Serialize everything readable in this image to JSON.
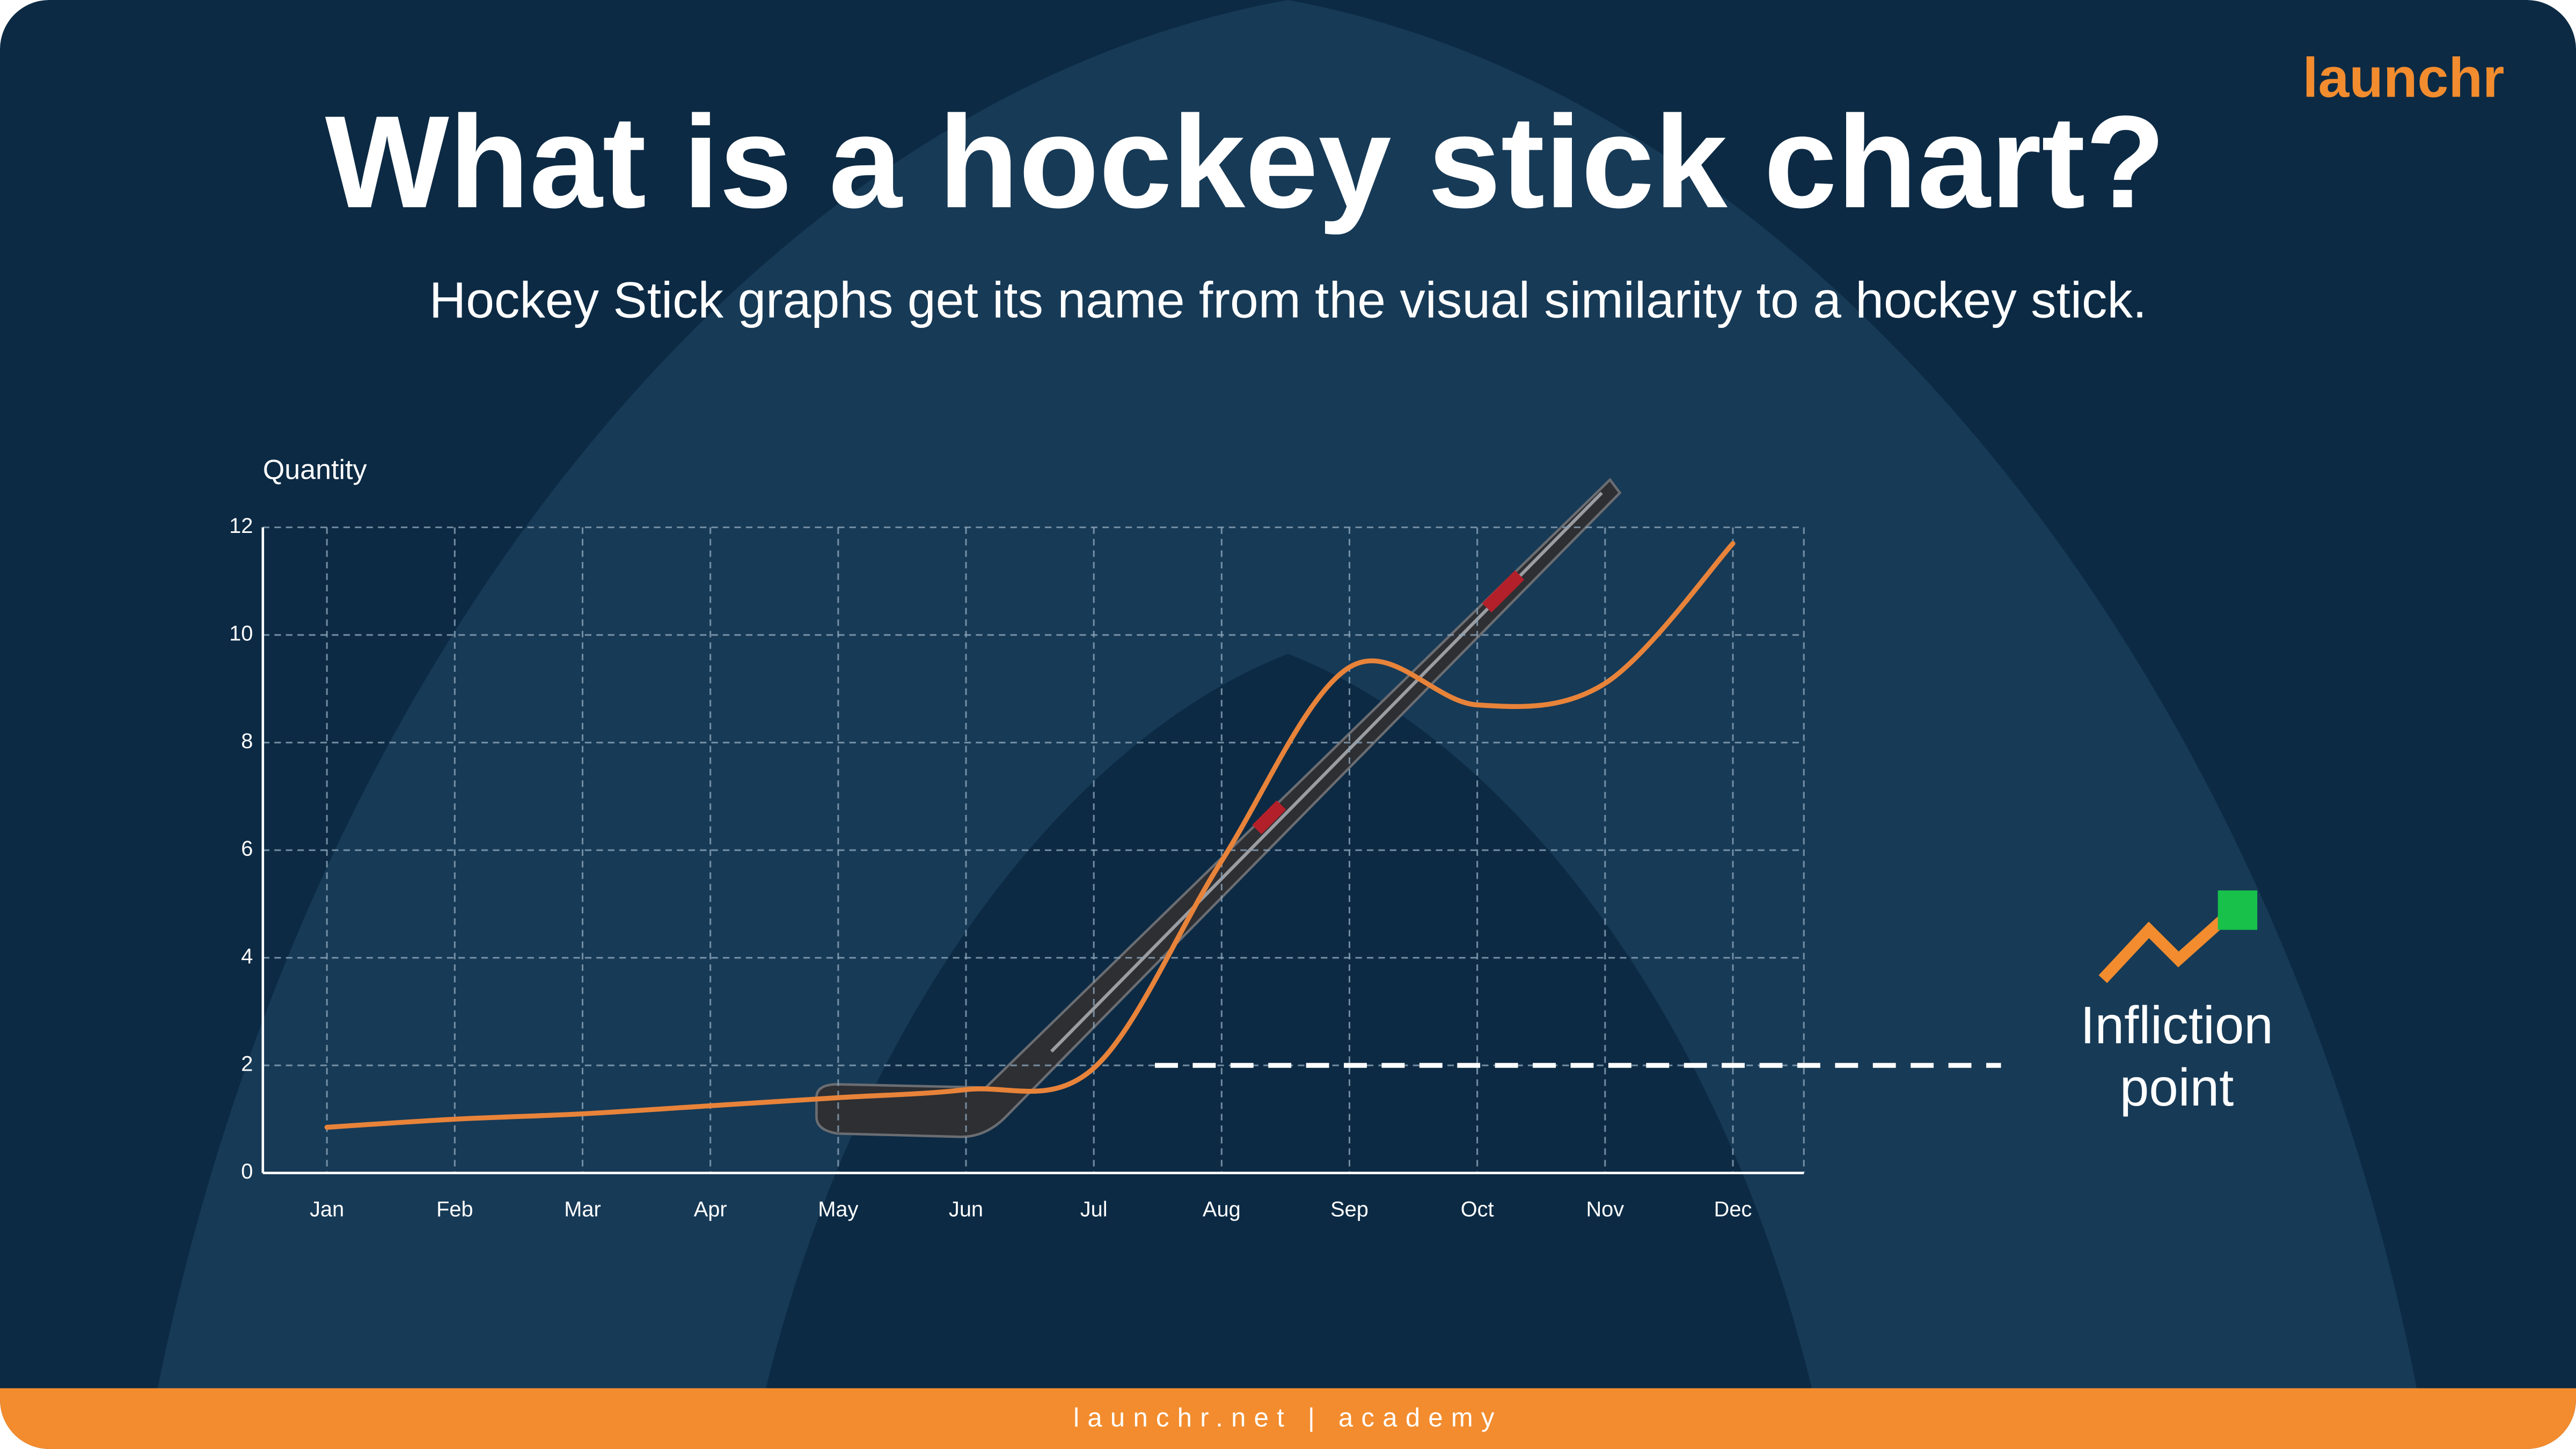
{
  "logo": "launchr",
  "title": "What is a hockey stick chart?",
  "subtitle": "Hockey Stick graphs get its name from the visual similarity to a hockey stick.",
  "footer": "launchr.net | academy",
  "chart_data": {
    "type": "line",
    "y_label": "Quantity",
    "categories": [
      "Jan",
      "Feb",
      "Mar",
      "Apr",
      "May",
      "Jun",
      "Jul",
      "Aug",
      "Sep",
      "Oct",
      "Nov",
      "Dec"
    ],
    "series": [
      {
        "name": "Quantity",
        "color": "#e8833a",
        "values": [
          0.85,
          1.0,
          1.1,
          1.25,
          1.4,
          1.55,
          1.95,
          5.8,
          9.4,
          8.7,
          9.1,
          11.7
        ]
      }
    ],
    "ylim": [
      0,
      12
    ],
    "yticks": [
      0,
      2,
      4,
      6,
      8,
      10,
      12
    ],
    "grid": true,
    "reference_line": {
      "value": 2,
      "label": "Infliction point"
    }
  }
}
